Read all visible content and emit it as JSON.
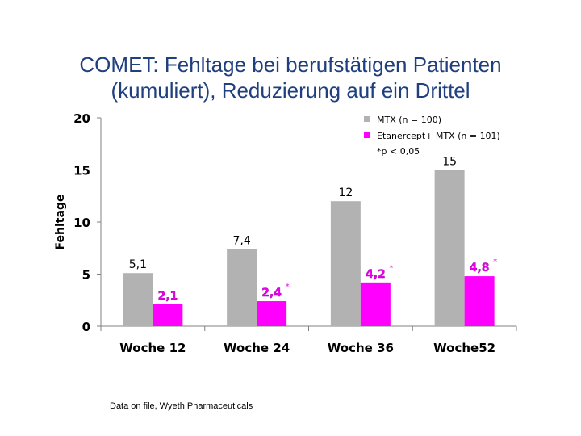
{
  "title": {
    "line1": "COMET: Fehltage bei berufstätigen Patienten",
    "line2": "(kumuliert), Reduzierung auf ein Drittel"
  },
  "chart_data": {
    "type": "bar",
    "categories": [
      "Woche 12",
      "Woche 24",
      "Woche 36",
      "Woche52"
    ],
    "series": [
      {
        "name": "MTX (n = 100)",
        "color": "#b2b2b2",
        "values": [
          5.1,
          7.4,
          12,
          15
        ],
        "labels": [
          "5,1",
          "7,4",
          "12",
          "15"
        ],
        "label_color": "#000000",
        "significance": [
          "",
          "",
          "",
          ""
        ]
      },
      {
        "name": "Etanercept+ MTX (n = 101)",
        "color": "#ff00ff",
        "values": [
          2.1,
          2.4,
          4.2,
          4.8
        ],
        "labels": [
          "2,1",
          "2,4",
          "4,2",
          "4,8"
        ],
        "label_color": "#ee00ee",
        "significance": [
          "",
          "*",
          "*",
          "*"
        ]
      }
    ],
    "ylabel": "Fehltage",
    "xlabel": "",
    "ylim": [
      0,
      20
    ],
    "yticks": [
      0,
      5,
      10,
      15,
      20
    ],
    "legend_note": "*p < 0,05",
    "legend_position": "top-right",
    "grid": false
  },
  "footnote": "Data on file, Wyeth Pharmaceuticals"
}
